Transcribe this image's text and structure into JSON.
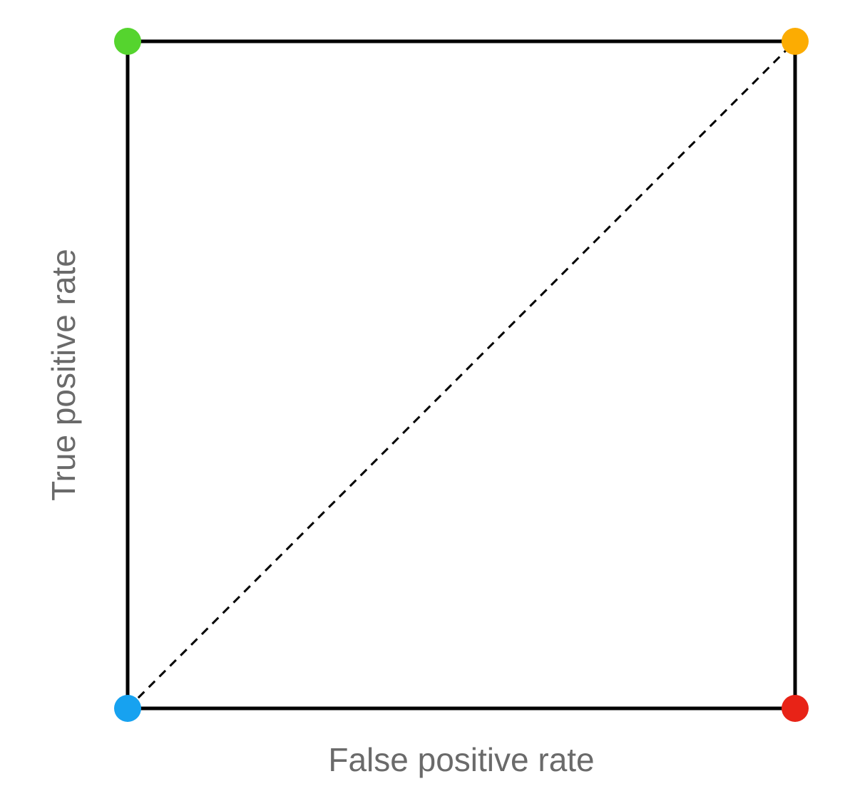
{
  "chart_data": {
    "type": "scatter",
    "title": "",
    "xlabel": "False positive rate",
    "ylabel": "True positive rate",
    "xlim": [
      0,
      1
    ],
    "ylim": [
      0,
      1
    ],
    "grid": false,
    "legend": null,
    "axis_box": {
      "stroke_color": "#000000",
      "stroke_width": 5
    },
    "points": [
      {
        "name": "top-left-point",
        "x": 0,
        "y": 1,
        "color": "#55d42e"
      },
      {
        "name": "top-right-point",
        "x": 1,
        "y": 1,
        "color": "#fcac02"
      },
      {
        "name": "bottom-left-point",
        "x": 0,
        "y": 0,
        "color": "#17a2f0"
      },
      {
        "name": "bottom-right-point",
        "x": 1,
        "y": 0,
        "color": "#e82317"
      }
    ],
    "marker_radius_px": 19,
    "reference_line": {
      "from": [
        0,
        0
      ],
      "to": [
        1,
        1
      ],
      "style": "dashed",
      "color": "#000000",
      "width": 3,
      "dash": "12 9"
    },
    "label_color": "#6a6a6a",
    "label_font_size_px": 46
  }
}
